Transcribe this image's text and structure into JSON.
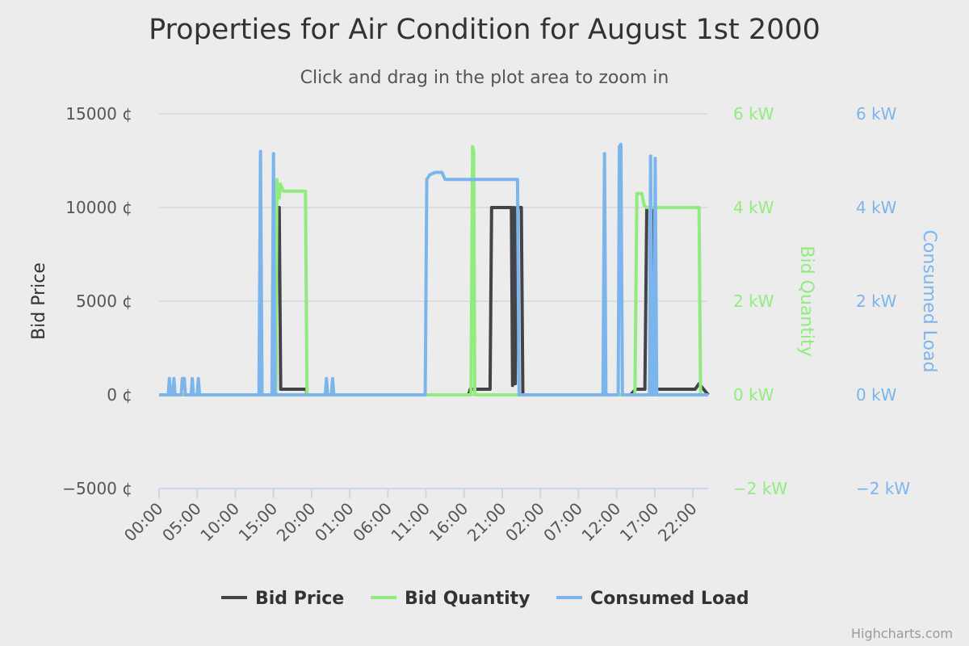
{
  "chart_data": {
    "type": "line",
    "title": "Properties for Air Condition for August 1st 2000",
    "subtitle": "Click and drag in the plot area to zoom in",
    "x_ticks": [
      "00:00",
      "05:00",
      "10:00",
      "15:00",
      "20:00",
      "01:00",
      "06:00",
      "11:00",
      "16:00",
      "21:00",
      "02:00",
      "07:00",
      "12:00",
      "17:00",
      "22:00"
    ],
    "x_unit_hours": true,
    "x_range_hours": [
      0,
      72
    ],
    "axes": {
      "bid_price": {
        "title": "Bid Price",
        "ticks": [
          "15000 ¢",
          "10000 ¢",
          "5000 ¢",
          "0 ¢",
          "−5000 ¢"
        ],
        "range": [
          -5000,
          15000
        ],
        "color": "#555555"
      },
      "bid_quantity": {
        "title": "Bid Quantity",
        "ticks": [
          "6 kW",
          "4 kW",
          "2 kW",
          "0 kW",
          "−2 kW"
        ],
        "range": [
          -2,
          6
        ],
        "color": "#90ed7d"
      },
      "consumed_load": {
        "title": "Consumed Load",
        "ticks": [
          "6 kW",
          "4 kW",
          "2 kW",
          "0 kW",
          "−2 kW"
        ],
        "range": [
          -2,
          6
        ],
        "color": "#7cb5ec"
      }
    },
    "legend": {
      "placement": "bottom-center",
      "items": [
        "Bid Price",
        "Bid Quantity",
        "Consumed Load"
      ]
    },
    "series": [
      {
        "name": "Bid Price",
        "axis": "bid_price",
        "color": "#434348",
        "points": [
          [
            0,
            0
          ],
          [
            15.3,
            0
          ],
          [
            15.45,
            10000
          ],
          [
            15.75,
            10000
          ],
          [
            15.95,
            300
          ],
          [
            19.3,
            300
          ],
          [
            19.4,
            0
          ],
          [
            40.6,
            0
          ],
          [
            40.8,
            300
          ],
          [
            43.4,
            300
          ],
          [
            43.6,
            10000
          ],
          [
            46.2,
            10000
          ],
          [
            46.35,
            500
          ],
          [
            46.5,
            10000
          ],
          [
            46.7,
            600
          ],
          [
            46.85,
            10000
          ],
          [
            47.5,
            10000
          ],
          [
            47.7,
            0
          ],
          [
            61.8,
            0
          ],
          [
            62.5,
            300
          ],
          [
            63.7,
            300
          ],
          [
            63.95,
            10000
          ],
          [
            64.6,
            10000
          ],
          [
            64.8,
            300
          ],
          [
            70.3,
            300
          ],
          [
            70.8,
            600
          ],
          [
            72,
            0
          ]
        ]
      },
      {
        "name": "Bid Quantity",
        "axis": "bid_quantity",
        "color": "#90ed7d",
        "points": [
          [
            0,
            0
          ],
          [
            15.3,
            0
          ],
          [
            15.45,
            4.6
          ],
          [
            15.6,
            4.2
          ],
          [
            15.75,
            4.2
          ],
          [
            15.9,
            4.5
          ],
          [
            16.3,
            4.35
          ],
          [
            19.2,
            4.35
          ],
          [
            19.4,
            0
          ],
          [
            40.9,
            0
          ],
          [
            41.1,
            5.3
          ],
          [
            41.25,
            5.2
          ],
          [
            41.4,
            0
          ],
          [
            62.4,
            0
          ],
          [
            62.65,
            4.3
          ],
          [
            63.3,
            4.3
          ],
          [
            63.6,
            4.05
          ],
          [
            63.9,
            4.0
          ],
          [
            70.8,
            4.0
          ],
          [
            71.0,
            0
          ],
          [
            72,
            0
          ]
        ]
      },
      {
        "name": "Consumed Load",
        "axis": "consumed_load",
        "color": "#7cb5ec",
        "points": [
          [
            0,
            0
          ],
          [
            1.2,
            0
          ],
          [
            1.35,
            0.35
          ],
          [
            1.5,
            0
          ],
          [
            1.8,
            0
          ],
          [
            1.95,
            0.35
          ],
          [
            2.1,
            0
          ],
          [
            2.9,
            0
          ],
          [
            3.05,
            0.35
          ],
          [
            3.3,
            0.35
          ],
          [
            3.45,
            0
          ],
          [
            4.2,
            0
          ],
          [
            4.35,
            0.35
          ],
          [
            4.5,
            0
          ],
          [
            5.0,
            0
          ],
          [
            5.15,
            0.35
          ],
          [
            5.3,
            0
          ],
          [
            13.1,
            0
          ],
          [
            13.3,
            5.2
          ],
          [
            13.5,
            0
          ],
          [
            14.8,
            0
          ],
          [
            15.0,
            5.15
          ],
          [
            15.2,
            0
          ],
          [
            21.8,
            0
          ],
          [
            21.95,
            0.35
          ],
          [
            22.1,
            0
          ],
          [
            22.6,
            0
          ],
          [
            22.75,
            0.35
          ],
          [
            22.9,
            0
          ],
          [
            34.9,
            0
          ],
          [
            35.1,
            4.6
          ],
          [
            35.5,
            4.7
          ],
          [
            36.2,
            4.75
          ],
          [
            37.1,
            4.75
          ],
          [
            37.5,
            4.6
          ],
          [
            39.6,
            4.6
          ],
          [
            46.6,
            4.6
          ],
          [
            47.0,
            4.6
          ],
          [
            47.2,
            0
          ],
          [
            58.2,
            0
          ],
          [
            58.4,
            5.15
          ],
          [
            58.6,
            0
          ],
          [
            60.2,
            0
          ],
          [
            60.35,
            5.3
          ],
          [
            60.55,
            5.35
          ],
          [
            60.75,
            0
          ],
          [
            64.3,
            0
          ],
          [
            64.45,
            5.1
          ],
          [
            64.65,
            0
          ],
          [
            64.9,
            0
          ],
          [
            65.05,
            5.05
          ],
          [
            65.25,
            0
          ],
          [
            72,
            0
          ]
        ]
      }
    ]
  },
  "credits": "Highcharts.com"
}
